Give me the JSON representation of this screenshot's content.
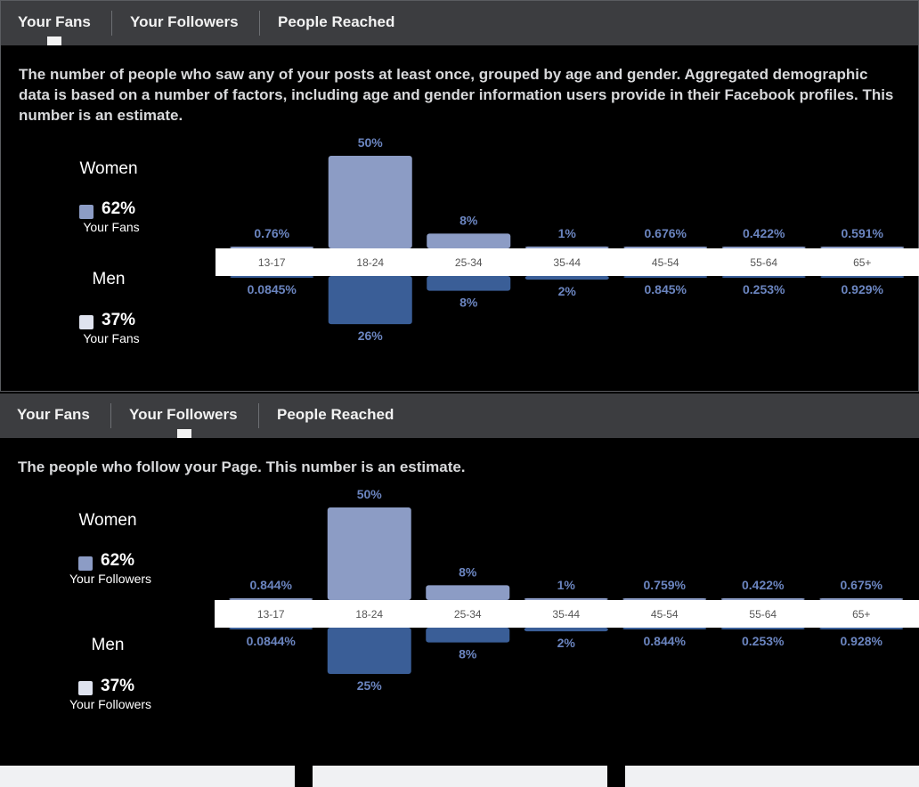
{
  "panels": [
    {
      "tabs": [
        "Your Fans",
        "Your Followers",
        "People Reached"
      ],
      "active_tab": "Your Fans",
      "description": "The number of people who saw any of your posts at least once, grouped by age and gender. Aggregated demographic data is based on a number of factors, including age and gender information users provide in their Facebook profiles. This number is an estimate.",
      "women": {
        "label": "Women",
        "pct": "62%",
        "sub": "Your Fans"
      },
      "men": {
        "label": "Men",
        "pct": "37%",
        "sub": "Your Fans"
      }
    },
    {
      "tabs": [
        "Your Fans",
        "Your Followers",
        "People Reached"
      ],
      "active_tab": "Your Followers",
      "description": "The people who follow your Page. This number is an estimate.",
      "women": {
        "label": "Women",
        "pct": "62%",
        "sub": "Your Followers"
      },
      "men": {
        "label": "Men",
        "pct": "37%",
        "sub": "Your Followers"
      }
    }
  ],
  "colors": {
    "women": "#8c9cc5",
    "men": "#3a5e97",
    "label": "#6b85c0",
    "axis_band": "#ffffff"
  },
  "chart_data": [
    {
      "type": "bar",
      "categories": [
        "13-17",
        "18-24",
        "25-34",
        "35-44",
        "45-54",
        "55-64",
        "65+"
      ],
      "series": [
        {
          "name": "Women",
          "values": [
            0.76,
            50,
            8,
            1,
            0.676,
            0.422,
            0.591
          ],
          "labels": [
            "0.76%",
            "50%",
            "8%",
            "1%",
            "0.676%",
            "0.422%",
            "0.591%"
          ]
        },
        {
          "name": "Men",
          "values": [
            0.0845,
            26,
            8,
            2,
            0.845,
            0.253,
            0.929
          ],
          "labels": [
            "0.0845%",
            "26%",
            "8%",
            "2%",
            "0.845%",
            "0.253%",
            "0.929%"
          ]
        }
      ]
    },
    {
      "type": "bar",
      "categories": [
        "13-17",
        "18-24",
        "25-34",
        "35-44",
        "45-54",
        "55-64",
        "65+"
      ],
      "series": [
        {
          "name": "Women",
          "values": [
            0.844,
            50,
            8,
            1,
            0.759,
            0.422,
            0.675
          ],
          "labels": [
            "0.844%",
            "50%",
            "8%",
            "1%",
            "0.759%",
            "0.422%",
            "0.675%"
          ]
        },
        {
          "name": "Men",
          "values": [
            0.0844,
            25,
            8,
            2,
            0.844,
            0.253,
            0.928
          ],
          "labels": [
            "0.0844%",
            "25%",
            "8%",
            "2%",
            "0.844%",
            "0.253%",
            "0.928%"
          ]
        }
      ]
    }
  ]
}
